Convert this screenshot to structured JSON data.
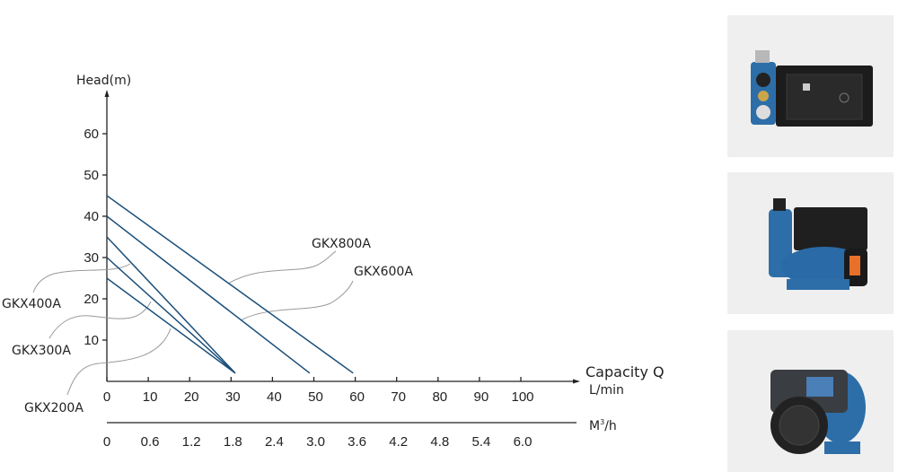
{
  "chart_data": {
    "type": "line",
    "title": "",
    "ylabel": "Head(m)",
    "xlabel": "Capacity Q",
    "xunit": "L/min",
    "x2unit_base": "M",
    "x2unit_sup": "3",
    "x2unit_tail": "/h",
    "xlim": [
      0,
      114
    ],
    "ylim": [
      0,
      68
    ],
    "xticks": [
      0,
      10,
      20,
      30,
      40,
      50,
      60,
      70,
      80,
      90,
      100
    ],
    "yticks": [
      10,
      20,
      30,
      40,
      50,
      60
    ],
    "x2ticks": [
      "0",
      "0.6",
      "1.2",
      "1.8",
      "2.4",
      "3.0",
      "3.6",
      "4.2",
      "4.8",
      "5.4",
      "6.0"
    ],
    "grid": false,
    "line_color": "#1b4f7a",
    "series": [
      {
        "name": "GKX800A",
        "x": [
          0,
          59.5
        ],
        "y": [
          45,
          2
        ]
      },
      {
        "name": "GKX600A",
        "x": [
          0,
          49
        ],
        "y": [
          40,
          2
        ]
      },
      {
        "name": "GKX400A",
        "x": [
          0,
          31
        ],
        "y": [
          35,
          2
        ]
      },
      {
        "name": "GKX300A",
        "x": [
          0,
          31
        ],
        "y": [
          30,
          2
        ]
      },
      {
        "name": "GKX200A",
        "x": [
          0,
          31
        ],
        "y": [
          25,
          2
        ]
      }
    ]
  },
  "products": [
    {
      "name": "controller-unit"
    },
    {
      "name": "self-priming-pump"
    },
    {
      "name": "smart-pump"
    }
  ]
}
